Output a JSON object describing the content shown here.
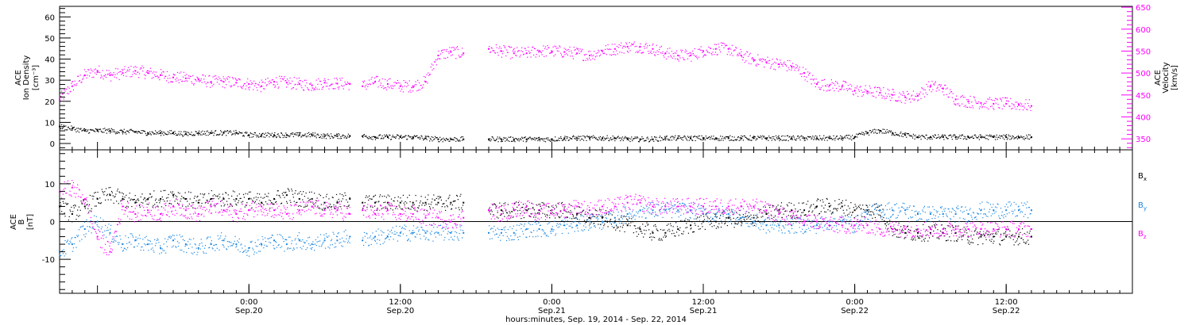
{
  "x_axis": {
    "title": "hours:minutes, Sep. 19, 2014 - Sep. 22, 2014",
    "ticks": [
      {
        "t": 30,
        "time": "0:00",
        "date": "Sep.20"
      },
      {
        "t": 42,
        "time": "12:00",
        "date": "Sep.20"
      },
      {
        "t": 54,
        "time": "0:00",
        "date": "Sep.21"
      },
      {
        "t": 66,
        "time": "12:00",
        "date": "Sep.21"
      },
      {
        "t": 78,
        "time": "0:00",
        "date": "Sep.22"
      },
      {
        "t": 90,
        "time": "12:00",
        "date": "Sep.22"
      }
    ],
    "range_hours_since_sep19": [
      15.0,
      100.0
    ]
  },
  "chart_data": [
    {
      "type": "scatter",
      "title": "",
      "ylabel_left": [
        "ACE",
        "Ion Density",
        "[cm⁻³]"
      ],
      "ylabel_right": [
        "ACE",
        "Velocity",
        "[km/s]"
      ],
      "ylim_left": [
        -3,
        65
      ],
      "ylim_right": [
        325,
        652
      ],
      "yticks_left": [
        0,
        10,
        20,
        30,
        40,
        50,
        60
      ],
      "yticks_right": [
        350,
        400,
        450,
        500,
        550,
        600,
        650
      ],
      "colors": {
        "density": "#000000",
        "velocity": "#ff00ff"
      },
      "series": [
        {
          "name": "Velocity",
          "axis": "right",
          "color": "#ff00ff",
          "x": [
            15,
            16,
            17,
            18,
            19,
            20,
            21,
            22,
            23,
            24,
            25,
            26,
            27,
            28,
            29,
            30,
            31,
            32,
            33,
            34,
            35,
            36,
            37,
            38,
            39,
            40,
            41,
            42,
            43,
            44,
            45,
            46,
            47,
            48,
            49,
            50,
            51,
            52,
            53,
            54,
            55,
            56,
            57,
            58,
            59,
            60,
            61,
            62,
            63,
            64,
            65,
            66,
            67,
            68,
            69,
            70,
            71,
            72,
            73,
            74,
            75,
            76,
            77,
            78,
            79,
            80,
            81,
            82,
            83,
            84,
            85,
            86,
            87,
            88,
            89,
            90,
            91,
            92
          ],
          "y": [
            440,
            470,
            495,
            505,
            495,
            500,
            505,
            500,
            495,
            490,
            488,
            485,
            480,
            480,
            478,
            475,
            470,
            480,
            478,
            475,
            472,
            478,
            476,
            475,
            470,
            480,
            475,
            470,
            470,
            480,
            540,
            548,
            545,
            null,
            555,
            550,
            545,
            545,
            550,
            550,
            548,
            545,
            540,
            550,
            555,
            560,
            560,
            555,
            545,
            540,
            540,
            550,
            555,
            555,
            540,
            530,
            525,
            520,
            515,
            500,
            475,
            472,
            470,
            460,
            458,
            455,
            450,
            445,
            448,
            470,
            465,
            440,
            435,
            432,
            430,
            430,
            428,
            425
          ],
          "gap_hours": [
            38.0,
            39.0
          ]
        },
        {
          "name": "Density",
          "axis": "left",
          "color": "#000000",
          "x": [
            15,
            16,
            17,
            18,
            19,
            20,
            21,
            22,
            23,
            24,
            25,
            26,
            27,
            28,
            29,
            30,
            31,
            32,
            33,
            34,
            35,
            36,
            37,
            38,
            39,
            40,
            41,
            42,
            43,
            44,
            45,
            46,
            47,
            48,
            49,
            50,
            51,
            52,
            53,
            54,
            55,
            56,
            57,
            58,
            59,
            60,
            61,
            62,
            63,
            64,
            65,
            66,
            67,
            68,
            69,
            70,
            71,
            72,
            73,
            74,
            75,
            76,
            77,
            78,
            79,
            80,
            81,
            82,
            83,
            84,
            85,
            86,
            87,
            88,
            89,
            90,
            91,
            92
          ],
          "y": [
            8,
            7,
            6,
            6,
            6,
            5.5,
            5.5,
            5,
            5,
            5,
            4.5,
            5,
            5,
            5,
            5,
            4,
            4,
            4,
            4,
            4,
            4,
            3.5,
            3.5,
            3.5,
            3.5,
            3,
            3,
            3,
            3,
            2.5,
            2,
            2,
            2,
            null,
            2,
            2,
            2,
            2,
            2,
            2,
            2.5,
            2.5,
            2.5,
            2.5,
            2.5,
            2,
            2,
            2,
            2.5,
            2.5,
            2.5,
            2.5,
            2.5,
            2.5,
            2.5,
            2.5,
            2.5,
            2.5,
            2.5,
            2.5,
            2.5,
            2.5,
            2.5,
            3,
            5,
            6,
            5,
            4,
            3,
            3,
            3,
            3,
            3,
            3,
            3,
            3,
            3,
            3
          ],
          "gap_hours": [
            38.0,
            39.0
          ]
        }
      ]
    },
    {
      "type": "scatter",
      "title": "",
      "ylabel": [
        "ACE",
        "B",
        "[nT]"
      ],
      "ylim": [
        -19,
        19
      ],
      "yticks": [
        -10,
        0,
        10
      ],
      "zero_line": true,
      "legend_placement": "right",
      "legend": [
        "Bx",
        "By",
        "Bz"
      ],
      "series": [
        {
          "name": "Bx",
          "color": "#000000",
          "x": [
            15,
            16,
            17,
            18,
            19,
            20,
            21,
            22,
            23,
            24,
            25,
            26,
            27,
            28,
            29,
            30,
            31,
            32,
            33,
            34,
            35,
            36,
            37,
            38,
            39,
            40,
            41,
            42,
            43,
            44,
            45,
            46,
            47,
            48,
            49,
            50,
            51,
            52,
            53,
            54,
            55,
            56,
            57,
            58,
            59,
            60,
            61,
            62,
            63,
            64,
            65,
            66,
            67,
            68,
            69,
            70,
            71,
            72,
            73,
            74,
            75,
            76,
            77,
            78,
            79,
            80,
            81,
            82,
            83,
            84,
            85,
            86,
            87,
            88,
            89,
            90,
            91,
            92
          ],
          "y": [
            4,
            2,
            4,
            6,
            7,
            6,
            5,
            6,
            6,
            7,
            6,
            5,
            6,
            6,
            6,
            6,
            5,
            6,
            7,
            6,
            6,
            5,
            5,
            6,
            5,
            5,
            5,
            5,
            5,
            5,
            5,
            5,
            5,
            null,
            3,
            3,
            3,
            3,
            3,
            3,
            3,
            2,
            1,
            1,
            0,
            -1,
            -2,
            -3,
            -3,
            -2,
            -1,
            0,
            0,
            1,
            0,
            1,
            2,
            3,
            3,
            3,
            4,
            4,
            4,
            3,
            3,
            3,
            -2,
            -3,
            -3,
            -3,
            -3,
            -3,
            -4,
            -4,
            -4,
            -4,
            -4,
            -4
          ],
          "gap_hours": [
            38.0,
            39.0
          ]
        },
        {
          "name": "By",
          "color": "#1a86e0",
          "x": [
            15,
            16,
            17,
            18,
            19,
            20,
            21,
            22,
            23,
            24,
            25,
            26,
            27,
            28,
            29,
            30,
            31,
            32,
            33,
            34,
            35,
            36,
            37,
            38,
            39,
            40,
            41,
            42,
            43,
            44,
            45,
            46,
            47,
            48,
            49,
            50,
            51,
            52,
            53,
            54,
            55,
            56,
            57,
            58,
            59,
            60,
            61,
            62,
            63,
            64,
            65,
            66,
            67,
            68,
            69,
            70,
            71,
            72,
            73,
            74,
            75,
            76,
            77,
            78,
            79,
            80,
            81,
            82,
            83,
            84,
            85,
            86,
            87,
            88,
            89,
            90,
            91,
            92
          ],
          "y": [
            -8,
            -6,
            -2,
            0,
            -3,
            -6,
            -5,
            -6,
            -7,
            -5,
            -6,
            -7,
            -6,
            -5,
            -6,
            -7,
            -6,
            -5,
            -6,
            -5,
            -6,
            -5,
            -5,
            -4,
            -5,
            -4,
            -4,
            -3,
            -3,
            -3,
            -3,
            -3,
            -3,
            null,
            -3,
            -3,
            -3,
            -2,
            -2,
            -2,
            -1,
            -1,
            0,
            0,
            1,
            2,
            3,
            3,
            3,
            3,
            3,
            2,
            2,
            2,
            1,
            0,
            -1,
            -1,
            -1,
            -1,
            -1,
            0,
            0,
            -1,
            2,
            3,
            3,
            3,
            2,
            2,
            2,
            2,
            2,
            3,
            3,
            3,
            3,
            3
          ],
          "gap_hours": [
            38.0,
            39.0
          ]
        },
        {
          "name": "Bz",
          "color": "#ff00ff",
          "x": [
            15,
            16,
            17,
            18,
            19,
            20,
            21,
            22,
            23,
            24,
            25,
            26,
            27,
            28,
            29,
            30,
            31,
            32,
            33,
            34,
            35,
            36,
            37,
            38,
            39,
            40,
            41,
            42,
            43,
            44,
            45,
            46,
            47,
            48,
            49,
            50,
            51,
            52,
            53,
            54,
            55,
            56,
            57,
            58,
            59,
            60,
            61,
            62,
            63,
            64,
            65,
            66,
            67,
            68,
            69,
            70,
            71,
            72,
            73,
            74,
            75,
            76,
            77,
            78,
            79,
            80,
            81,
            82,
            83,
            84,
            85,
            86,
            87,
            88,
            89,
            90,
            91,
            92
          ],
          "y": [
            8,
            9,
            6,
            -4,
            -8,
            4,
            2,
            3,
            2,
            4,
            3,
            2,
            4,
            3,
            2,
            3,
            4,
            3,
            2,
            3,
            4,
            3,
            3,
            2,
            3,
            2,
            3,
            2,
            2,
            1,
            1,
            0,
            1,
            null,
            3,
            2,
            3,
            4,
            2,
            3,
            3,
            4,
            3,
            4,
            4,
            5,
            5,
            4,
            4,
            4,
            4,
            4,
            4,
            4,
            4,
            4,
            3,
            2,
            1,
            0,
            0,
            -1,
            -1,
            -1,
            -1,
            -2,
            -2,
            -2,
            -2,
            -2,
            -2,
            -2,
            -2,
            -2,
            -2,
            -2,
            -2,
            -2
          ],
          "gap_hours": [
            38.0,
            39.0
          ]
        }
      ]
    }
  ]
}
